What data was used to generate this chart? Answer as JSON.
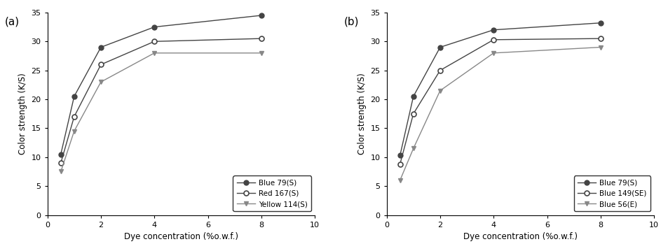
{
  "chart_a": {
    "title": "(a)",
    "xlabel": "Dye concentration (%o.w.f.)",
    "ylabel": "Color strength (K/S)",
    "xlim": [
      0,
      10
    ],
    "ylim": [
      0,
      35
    ],
    "xticks": [
      0,
      2,
      4,
      6,
      8,
      10
    ],
    "yticks": [
      0,
      5,
      10,
      15,
      20,
      25,
      30,
      35
    ],
    "series": [
      {
        "label": "Blue 79(S)",
        "x": [
          0.5,
          1,
          2,
          4,
          8
        ],
        "y": [
          10.5,
          20.5,
          29.0,
          32.5,
          34.5
        ],
        "marker": "o",
        "fillstyle": "full",
        "color": "#444444",
        "linestyle": "-"
      },
      {
        "label": "Red 167(S)",
        "x": [
          0.5,
          1,
          2,
          4,
          8
        ],
        "y": [
          9.0,
          17.0,
          26.0,
          30.0,
          30.5
        ],
        "marker": "o",
        "fillstyle": "none",
        "color": "#444444",
        "linestyle": "-"
      },
      {
        "label": "Yellow 114(S)",
        "x": [
          0.5,
          1,
          2,
          4,
          8
        ],
        "y": [
          7.5,
          14.5,
          23.0,
          28.0,
          28.0
        ],
        "marker": "v",
        "fillstyle": "full",
        "color": "#888888",
        "linestyle": "-"
      }
    ],
    "legend_loc": "lower right"
  },
  "chart_b": {
    "title": "(b)",
    "xlabel": "Dye concentration (%o.w.f.)",
    "ylabel": "Color strength (K/S)",
    "xlim": [
      0,
      10
    ],
    "ylim": [
      0,
      35
    ],
    "xticks": [
      0,
      2,
      4,
      6,
      8,
      10
    ],
    "yticks": [
      0,
      5,
      10,
      15,
      20,
      25,
      30,
      35
    ],
    "series": [
      {
        "label": "Blue 79(S)",
        "x": [
          0.5,
          1,
          2,
          4,
          8
        ],
        "y": [
          10.3,
          20.5,
          29.0,
          32.0,
          33.2
        ],
        "marker": "o",
        "fillstyle": "full",
        "color": "#444444",
        "linestyle": "-"
      },
      {
        "label": "Blue 149(SE)",
        "x": [
          0.5,
          1,
          2,
          4,
          8
        ],
        "y": [
          8.8,
          17.5,
          25.0,
          30.3,
          30.5
        ],
        "marker": "o",
        "fillstyle": "none",
        "color": "#444444",
        "linestyle": "-"
      },
      {
        "label": "Blue 56(E)",
        "x": [
          0.5,
          1,
          2,
          4,
          8
        ],
        "y": [
          6.0,
          11.5,
          21.5,
          28.0,
          29.0
        ],
        "marker": "v",
        "fillstyle": "full",
        "color": "#888888",
        "linestyle": "-"
      }
    ],
    "legend_loc": "lower right"
  },
  "figsize": [
    9.54,
    3.59
  ],
  "dpi": 100
}
